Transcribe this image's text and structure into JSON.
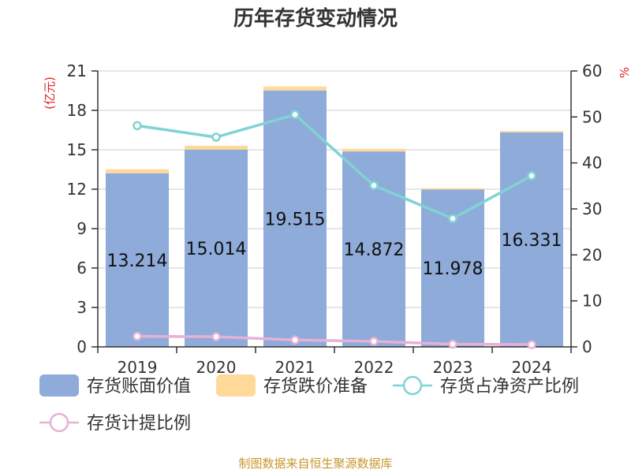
{
  "chart_data": {
    "type": "bar",
    "title": "历年存货变动情况",
    "categories": [
      "2019",
      "2020",
      "2021",
      "2022",
      "2023",
      "2024"
    ],
    "left_axis": {
      "unit_label": "(亿元)",
      "ylim": [
        0,
        21
      ],
      "ticks": [
        0,
        3,
        6,
        9,
        12,
        15,
        18,
        21
      ]
    },
    "right_axis": {
      "unit_label": "%",
      "ylim": [
        0,
        60
      ],
      "ticks": [
        0,
        10,
        20,
        30,
        40,
        50,
        60
      ]
    },
    "series": [
      {
        "name": "存货账面价值",
        "kind": "bar",
        "axis": "left",
        "color": "#8eabd9",
        "show_labels": true,
        "values": [
          13.214,
          15.014,
          19.515,
          14.872,
          11.978,
          16.331
        ]
      },
      {
        "name": "存货跌价准备",
        "kind": "bar-stack",
        "axis": "left",
        "color": "#ffd99a",
        "show_labels": false,
        "values": [
          0.3,
          0.3,
          0.3,
          0.2,
          0.1,
          0.1
        ]
      },
      {
        "name": "存货占净资产比例",
        "kind": "line",
        "axis": "right",
        "color": "#7fd3d4",
        "show_labels": false,
        "values": [
          48.1,
          45.6,
          50.5,
          35.1,
          27.9,
          37.2
        ]
      },
      {
        "name": "存货计提比例",
        "kind": "line",
        "axis": "right",
        "color": "#e6b1d6",
        "show_labels": false,
        "values": [
          2.3,
          2.2,
          1.5,
          1.2,
          0.6,
          0.5
        ]
      }
    ],
    "grid": true,
    "legend_position": "bottom"
  },
  "footer": {
    "source": "制图数据来自恒生聚源数据库"
  }
}
